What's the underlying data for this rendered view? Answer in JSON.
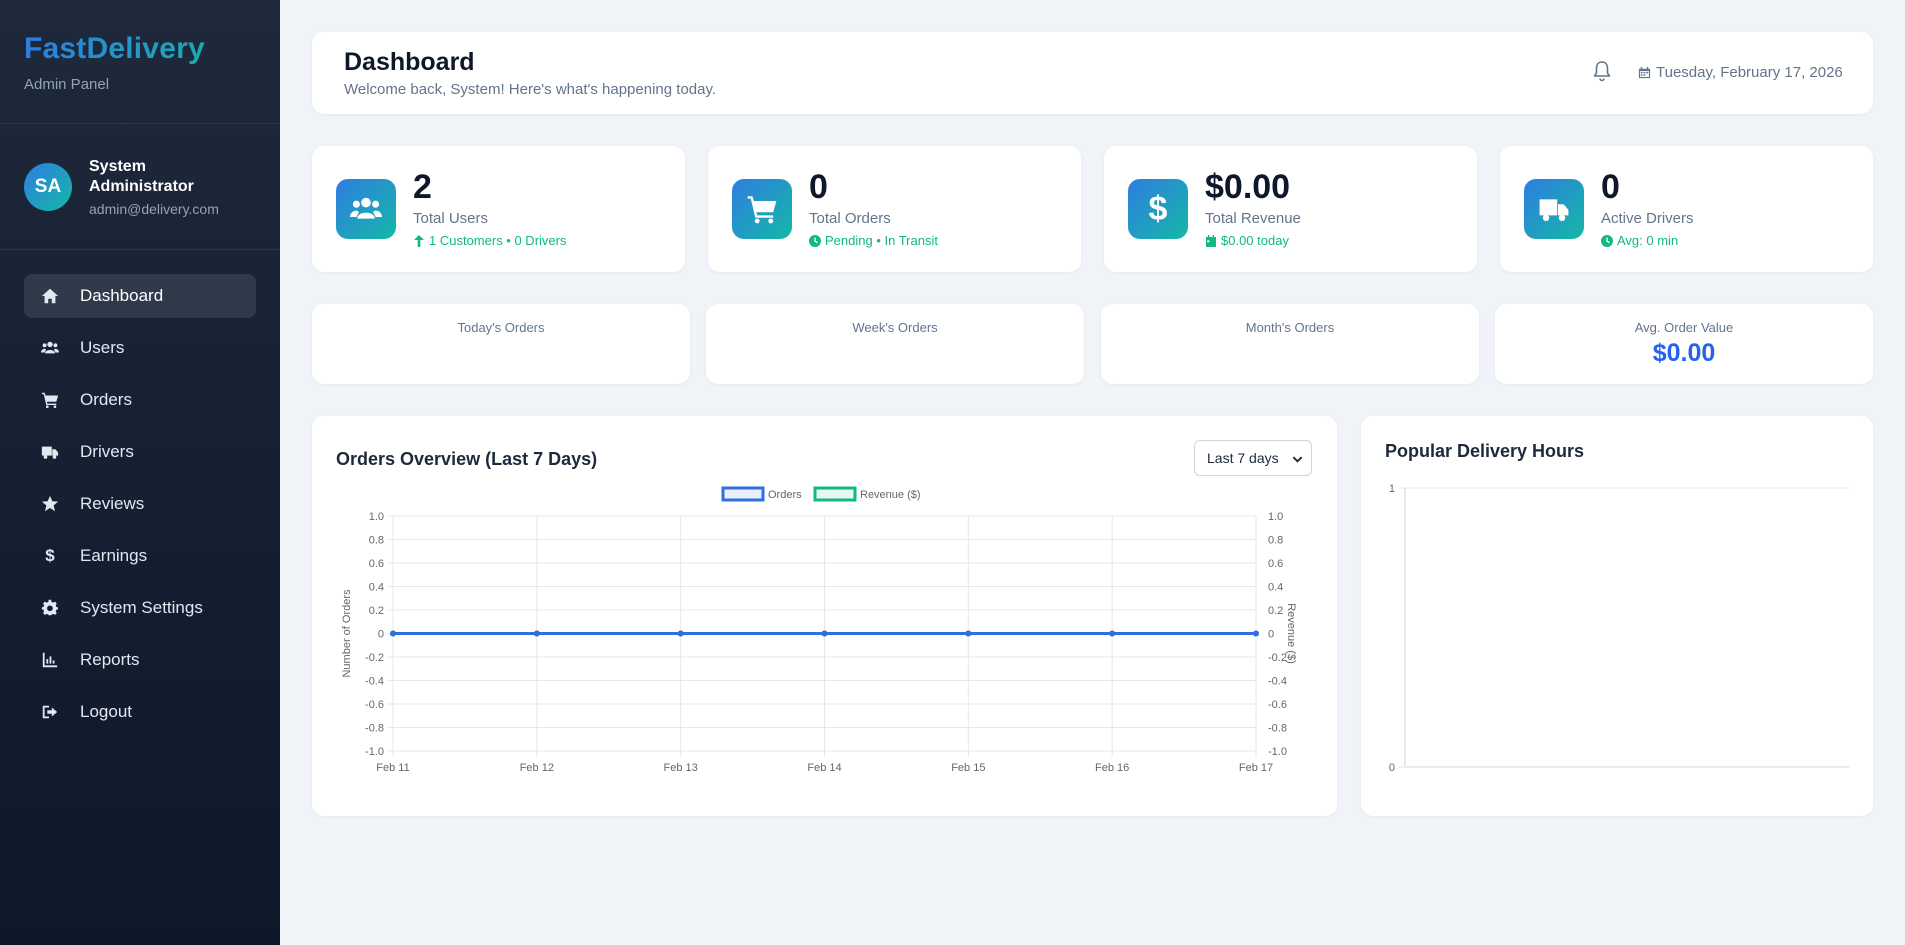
{
  "brand": {
    "title": "FastDelivery",
    "subtitle": "Admin Panel"
  },
  "profile": {
    "initials": "SA",
    "name": "System Administrator",
    "email": "admin@delivery.com"
  },
  "nav": [
    {
      "label": "Dashboard",
      "icon": "home-icon",
      "active": true
    },
    {
      "label": "Users",
      "icon": "users-icon"
    },
    {
      "label": "Orders",
      "icon": "cart-icon"
    },
    {
      "label": "Drivers",
      "icon": "truck-icon"
    },
    {
      "label": "Reviews",
      "icon": "star-icon"
    },
    {
      "label": "Earnings",
      "icon": "dollar-icon"
    },
    {
      "label": "System Settings",
      "icon": "gear-icon"
    },
    {
      "label": "Reports",
      "icon": "chart-icon"
    },
    {
      "label": "Logout",
      "icon": "logout-icon"
    }
  ],
  "header": {
    "title": "Dashboard",
    "subtitle": "Welcome back, System! Here's what's happening today.",
    "date": "Tuesday, February 17, 2026"
  },
  "stats": [
    {
      "value": "2",
      "label": "Total Users",
      "sub": "1 Customers • 0 Drivers",
      "icon": "users-icon",
      "sub_icon": "arrow-up-icon"
    },
    {
      "value": "0",
      "label": "Total Orders",
      "sub": "Pending • In Transit",
      "icon": "cart-icon",
      "sub_icon": "clock-icon"
    },
    {
      "value": "$0.00",
      "label": "Total Revenue",
      "sub": "$0.00 today",
      "icon": "dollar-icon",
      "sub_icon": "calendar-icon"
    },
    {
      "value": "0",
      "label": "Active Drivers",
      "sub": "Avg: 0 min",
      "icon": "truck-icon",
      "sub_icon": "clock-icon"
    }
  ],
  "periods": [
    {
      "label": "Today's Orders",
      "value": ""
    },
    {
      "label": "Week's Orders",
      "value": ""
    },
    {
      "label": "Month's Orders",
      "value": ""
    },
    {
      "label": "Avg. Order Value",
      "value": "$0.00"
    }
  ],
  "orders_chart": {
    "title": "Orders Overview (Last 7 Days)",
    "range_select": "Last 7 days"
  },
  "hours_chart": {
    "title": "Popular Delivery Hours"
  },
  "colors": {
    "accent": "#2563eb",
    "teal": "#14b8a6",
    "success": "#10b981",
    "orders_line": "#2f6fde",
    "revenue_line": "#10b981"
  },
  "chart_data": [
    {
      "type": "line",
      "title": "",
      "x": [
        "Feb 11",
        "Feb 12",
        "Feb 13",
        "Feb 14",
        "Feb 15",
        "Feb 16",
        "Feb 17"
      ],
      "series": [
        {
          "name": "Orders",
          "values": [
            0,
            0,
            0,
            0,
            0,
            0,
            0
          ],
          "axis": "left"
        },
        {
          "name": "Revenue ($)",
          "values": [
            0,
            0,
            0,
            0,
            0,
            0,
            0
          ],
          "axis": "right"
        }
      ],
      "ylabel": "Number of Orders",
      "y2label": "Revenue ($)",
      "ylim": [
        -1,
        1
      ],
      "y2lim": [
        -1,
        1
      ],
      "yticks": [
        "1.0",
        "0.8",
        "0.6",
        "0.4",
        "0.2",
        "0",
        "-0.2",
        "-0.4",
        "-0.6",
        "-0.8",
        "-1.0"
      ],
      "grid": true,
      "legend": "top-center"
    },
    {
      "type": "bar",
      "title": "",
      "categories": [],
      "values": [],
      "ylim": [
        0,
        1
      ],
      "yticks": [
        "1",
        "0"
      ],
      "grid": true
    }
  ]
}
